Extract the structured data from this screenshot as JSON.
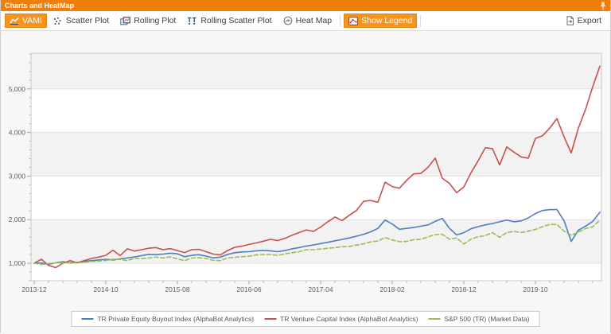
{
  "window": {
    "title": "Charts and HeatMap"
  },
  "toolbar": {
    "items": [
      {
        "label": "VAMI",
        "selected": true
      },
      {
        "label": "Scatter Plot",
        "selected": false
      },
      {
        "label": "Rolling Plot",
        "selected": false
      },
      {
        "label": "Rolling Scatter Plot",
        "selected": false
      },
      {
        "label": "Heat Map",
        "selected": false
      },
      {
        "label": "Show Legend",
        "selected": true
      }
    ],
    "export_label": "Export"
  },
  "colors": {
    "titlebar_orange": "#ee7e0e",
    "selected_button_orange": "#f7941e",
    "plot_band_gray": "#f2f2f2",
    "grid_line": "#e2e2e2",
    "axis_line": "#c9c9c9",
    "tick_text": "#5e5e5e"
  },
  "chart_data": {
    "type": "line",
    "x_start": "2013-12",
    "x_end": "2020-07",
    "points_per_series": 80,
    "x_tick_labels": [
      "2013-12",
      "2014-10",
      "2015-08",
      "2016-06",
      "2017-04",
      "2018-02",
      "2018-12",
      "2019-10"
    ],
    "x_tick_month_index": [
      0,
      10,
      20,
      30,
      40,
      50,
      60,
      70
    ],
    "yticks": [
      1000,
      2000,
      3000,
      4000,
      5000
    ],
    "ylim": [
      600,
      5820
    ],
    "grid": true,
    "legend_position": "bottom",
    "series": [
      {
        "key": "pe-buyout",
        "name": "TR Private Equity Buyout Index (AlphaBot Analytics)",
        "color": "#4d7ebf",
        "style": "solid",
        "values": [
          1000,
          1005,
          975,
          1010,
          1035,
          1008,
          1020,
          1040,
          1060,
          1075,
          1090,
          1075,
          1100,
          1120,
          1145,
          1175,
          1205,
          1195,
          1210,
          1230,
          1215,
          1150,
          1180,
          1195,
          1165,
          1120,
          1140,
          1200,
          1240,
          1260,
          1265,
          1285,
          1295,
          1285,
          1265,
          1290,
          1330,
          1360,
          1395,
          1420,
          1450,
          1480,
          1515,
          1545,
          1580,
          1620,
          1665,
          1720,
          1800,
          1990,
          1900,
          1780,
          1800,
          1820,
          1850,
          1880,
          1960,
          2030,
          1800,
          1650,
          1700,
          1790,
          1840,
          1880,
          1910,
          1950,
          1990,
          1950,
          1970,
          2040,
          2140,
          2210,
          2230,
          2230,
          1975,
          1500,
          1760,
          1850,
          1960,
          2170
        ]
      },
      {
        "key": "venture-capital",
        "name": "TR Venture Capital Index (AlphaBot Analytics)",
        "color": "#c9504c",
        "style": "solid",
        "values": [
          1000,
          1090,
          950,
          900,
          1000,
          1060,
          1010,
          1060,
          1110,
          1140,
          1180,
          1300,
          1175,
          1330,
          1280,
          1310,
          1345,
          1360,
          1310,
          1335,
          1290,
          1245,
          1310,
          1320,
          1265,
          1210,
          1190,
          1290,
          1365,
          1390,
          1430,
          1465,
          1505,
          1550,
          1520,
          1570,
          1640,
          1705,
          1765,
          1730,
          1830,
          1950,
          2060,
          1980,
          2100,
          2210,
          2420,
          2440,
          2400,
          2860,
          2760,
          2720,
          2900,
          3050,
          3060,
          3200,
          3410,
          2950,
          2830,
          2620,
          2750,
          3075,
          3350,
          3650,
          3630,
          3255,
          3670,
          3550,
          3440,
          3410,
          3865,
          3925,
          4100,
          4320,
          3900,
          3530,
          4100,
          4530,
          5050,
          5520
        ]
      },
      {
        "key": "sp500",
        "name": "S&P 500 (TR) (Market Data)",
        "color": "#9bbb59",
        "style": "dashed",
        "values": [
          1000,
          970,
          995,
          1005,
          1015,
          1005,
          1010,
          1020,
          1040,
          1050,
          1065,
          1090,
          1085,
          1060,
          1110,
          1105,
          1120,
          1140,
          1120,
          1145,
          1100,
          1060,
          1120,
          1125,
          1110,
          1065,
          1060,
          1120,
          1135,
          1150,
          1160,
          1190,
          1200,
          1200,
          1180,
          1215,
          1240,
          1265,
          1310,
          1310,
          1325,
          1345,
          1355,
          1380,
          1385,
          1415,
          1445,
          1490,
          1510,
          1590,
          1535,
          1495,
          1500,
          1540,
          1550,
          1605,
          1655,
          1665,
          1550,
          1580,
          1440,
          1555,
          1605,
          1635,
          1700,
          1595,
          1705,
          1730,
          1705,
          1735,
          1775,
          1840,
          1890,
          1890,
          1735,
          1640,
          1715,
          1795,
          1835,
          1990
        ]
      }
    ]
  }
}
